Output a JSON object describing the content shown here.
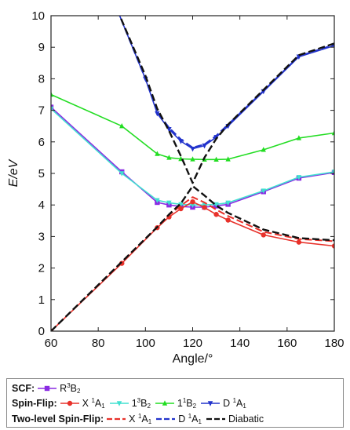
{
  "chart_data": {
    "type": "line",
    "xlabel": "Angle/°",
    "ylabel": "E/eV",
    "xlim": [
      60,
      180
    ],
    "ylim": [
      0,
      10
    ],
    "xticks": [
      60,
      80,
      100,
      120,
      140,
      160,
      180
    ],
    "yticks": [
      0,
      1,
      2,
      3,
      4,
      5,
      6,
      7,
      8,
      9,
      10
    ],
    "grid": false,
    "legend_placement": "bottom",
    "legend_groups": [
      {
        "header": "SCF:",
        "series": [
          "scf_r3b2"
        ]
      },
      {
        "header": "Spin-Flip:",
        "series": [
          "sf_x1a1",
          "sf_13b2",
          "sf_11b2",
          "sf_d1a1"
        ]
      },
      {
        "header": "Two-level Spin-Flip:",
        "series": [
          "tl_x1a1",
          "tl_d1a1",
          "diabatic"
        ]
      }
    ],
    "series": [
      {
        "id": "scf_r3b2",
        "name": "R³B₂",
        "label_main": "R",
        "label_sup": "3",
        "label_sub": "B",
        "label_sub2": "2",
        "color": "#8a2be2",
        "dash": "solid",
        "marker": "square",
        "x": [
          60,
          90,
          105,
          110,
          115,
          120,
          125,
          130,
          135,
          150,
          165,
          180
        ],
        "y": [
          7.1,
          5.05,
          4.08,
          4.0,
          3.95,
          3.93,
          3.93,
          3.97,
          4.02,
          4.42,
          4.85,
          5.03
        ]
      },
      {
        "id": "sf_x1a1",
        "name": "X ¹A₁",
        "color": "#e8312a",
        "dash": "solid",
        "marker": "circle",
        "x": [
          60,
          90,
          105,
          110,
          115,
          120,
          125,
          130,
          135,
          150,
          165,
          180
        ],
        "y": [
          0.0,
          2.15,
          3.28,
          3.62,
          3.88,
          4.1,
          3.92,
          3.7,
          3.52,
          3.05,
          2.82,
          2.7
        ]
      },
      {
        "id": "sf_13b2",
        "name": "1³B₂",
        "color": "#40e0d0",
        "dash": "solid",
        "marker": "triangle-down",
        "x": [
          60,
          90,
          105,
          110,
          115,
          120,
          125,
          130,
          135,
          150,
          165,
          180
        ],
        "y": [
          7.05,
          5.0,
          4.15,
          4.07,
          4.02,
          4.0,
          4.0,
          4.02,
          4.07,
          4.45,
          4.88,
          5.05
        ]
      },
      {
        "id": "sf_11b2",
        "name": "1¹B₂",
        "color": "#22dd22",
        "dash": "solid",
        "marker": "triangle-up",
        "x": [
          60,
          90,
          105,
          110,
          115,
          120,
          125,
          130,
          135,
          150,
          165,
          180
        ],
        "y": [
          7.5,
          6.5,
          5.62,
          5.5,
          5.46,
          5.45,
          5.44,
          5.44,
          5.45,
          5.75,
          6.12,
          6.28
        ]
      },
      {
        "id": "sf_d1a1",
        "name": "D ¹A₁",
        "color": "#2233cc",
        "dash": "solid",
        "marker": "triangle-down",
        "x": [
          88,
          100,
          105,
          110,
          115,
          120,
          125,
          130,
          135,
          150,
          165,
          180
        ],
        "y": [
          10.2,
          8.0,
          6.9,
          6.4,
          6.02,
          5.78,
          5.88,
          6.15,
          6.5,
          7.6,
          8.7,
          9.05
        ]
      },
      {
        "id": "tl_x1a1",
        "name": "X ¹A₁",
        "color": "#e8312a",
        "dash": "dash",
        "marker": "none",
        "x": [
          60,
          90,
          105,
          110,
          115,
          120,
          125,
          130,
          135,
          150,
          165,
          180
        ],
        "y": [
          0.0,
          2.2,
          3.3,
          3.68,
          3.98,
          4.25,
          4.08,
          3.85,
          3.65,
          3.15,
          2.92,
          2.85
        ]
      },
      {
        "id": "tl_d1a1",
        "name": "D ¹A₁",
        "color": "#2233cc",
        "dash": "dash",
        "marker": "none",
        "x": [
          88,
          100,
          105,
          110,
          115,
          120,
          125,
          130,
          135,
          150,
          165,
          180
        ],
        "y": [
          10.2,
          8.0,
          6.95,
          6.45,
          6.08,
          5.82,
          5.92,
          6.2,
          6.55,
          7.62,
          8.72,
          9.08
        ]
      },
      {
        "id": "diabatic",
        "name": "Diabatic",
        "color": "#111111",
        "dash": "dash",
        "marker": "none",
        "x": [
          60,
          90,
          105,
          110,
          115,
          120,
          125,
          130,
          135,
          150,
          165,
          180
        ],
        "y": [
          0.0,
          2.2,
          3.3,
          3.7,
          4.05,
          4.6,
          4.3,
          3.98,
          3.75,
          3.22,
          2.95,
          2.88
        ]
      },
      {
        "id": "diabatic_upper",
        "name": "",
        "color": "#111111",
        "dash": "dash",
        "marker": "none",
        "x": [
          88,
          100,
          105,
          110,
          115,
          120,
          125,
          130,
          135,
          150,
          165,
          180
        ],
        "y": [
          10.2,
          8.1,
          7.05,
          6.35,
          5.55,
          4.7,
          5.5,
          6.1,
          6.55,
          7.65,
          8.75,
          9.12
        ]
      }
    ]
  }
}
